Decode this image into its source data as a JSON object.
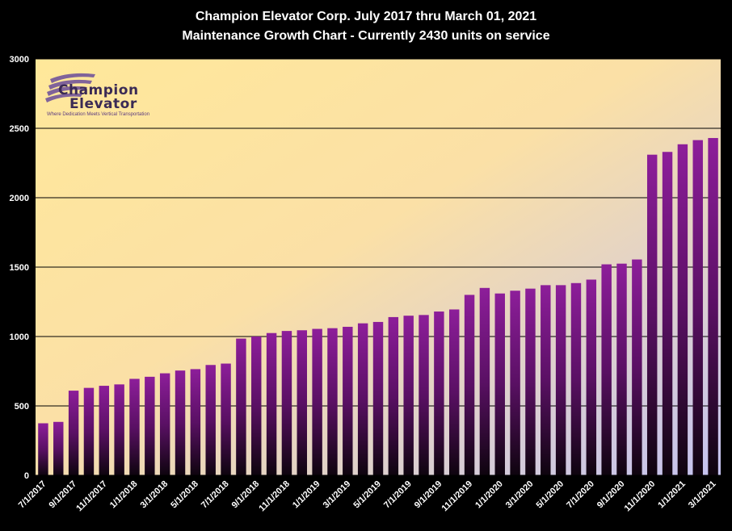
{
  "chart_data": {
    "type": "bar",
    "title": "Champion Elevator  Corp.  July 2017 thru March 01, 2021",
    "subtitle": "Maintenance Growth Chart - Currently 2430 units on service",
    "xlabel": "",
    "ylabel": "",
    "ylim": [
      0,
      3000
    ],
    "yticks": [
      0,
      500,
      1000,
      1500,
      2000,
      2500,
      3000
    ],
    "grid": true,
    "legend": "none",
    "categories": [
      "7/1/2017",
      "8/1/2017",
      "9/1/2017",
      "10/1/2017",
      "11/1/2017",
      "12/1/2017",
      "1/1/2018",
      "2/1/2018",
      "3/1/2018",
      "4/1/2018",
      "5/1/2018",
      "6/1/2018",
      "7/1/2018",
      "8/1/2018",
      "9/1/2018",
      "10/1/2018",
      "11/1/2018",
      "12/1/2018",
      "1/1/2019",
      "2/1/2019",
      "3/1/2019",
      "4/1/2019",
      "5/1/2019",
      "6/1/2019",
      "7/1/2019",
      "8/1/2019",
      "9/1/2019",
      "10/1/2019",
      "11/1/2019",
      "12/1/2019",
      "1/1/2020",
      "2/1/2020",
      "3/1/2020",
      "4/1/2020",
      "5/1/2020",
      "6/1/2020",
      "7/1/2020",
      "8/1/2020",
      "9/1/2020",
      "10/1/2020",
      "11/1/2020",
      "12/1/2020",
      "1/1/2021",
      "2/1/2021",
      "3/1/2021"
    ],
    "tick_labels": [
      "7/1/2017",
      "9/1/2017",
      "11/1/2017",
      "1/1/2018",
      "3/1/2018",
      "5/1/2018",
      "7/1/2018",
      "9/1/2018",
      "11/1/2018",
      "1/1/2019",
      "3/1/2019",
      "5/1/2019",
      "7/1/2019",
      "9/1/2019",
      "11/1/2019",
      "1/1/2020",
      "3/1/2020",
      "5/1/2020",
      "7/1/2020",
      "9/1/2020",
      "11/1/2020",
      "1/1/2021",
      "3/1/2021"
    ],
    "values": [
      375,
      385,
      610,
      630,
      645,
      655,
      695,
      710,
      735,
      755,
      765,
      795,
      805,
      985,
      1000,
      1025,
      1040,
      1045,
      1055,
      1060,
      1070,
      1095,
      1105,
      1140,
      1150,
      1155,
      1180,
      1195,
      1300,
      1350,
      1310,
      1330,
      1345,
      1370,
      1370,
      1385,
      1410,
      1520,
      1525,
      1555,
      2310,
      2330,
      2385,
      2415,
      2430
    ]
  },
  "logo": {
    "line1": "Champion",
    "line2": "Elevator",
    "tagline": "Where Dedication Meets Vertical Transportation"
  },
  "colors": {
    "bar_top": "#8a1a96",
    "bar_bottom": "#120612",
    "plot_bg_start": "#ffe38e",
    "plot_bg_end": "#c8c4ee",
    "grid": "#000000",
    "text": "#ffffff"
  }
}
